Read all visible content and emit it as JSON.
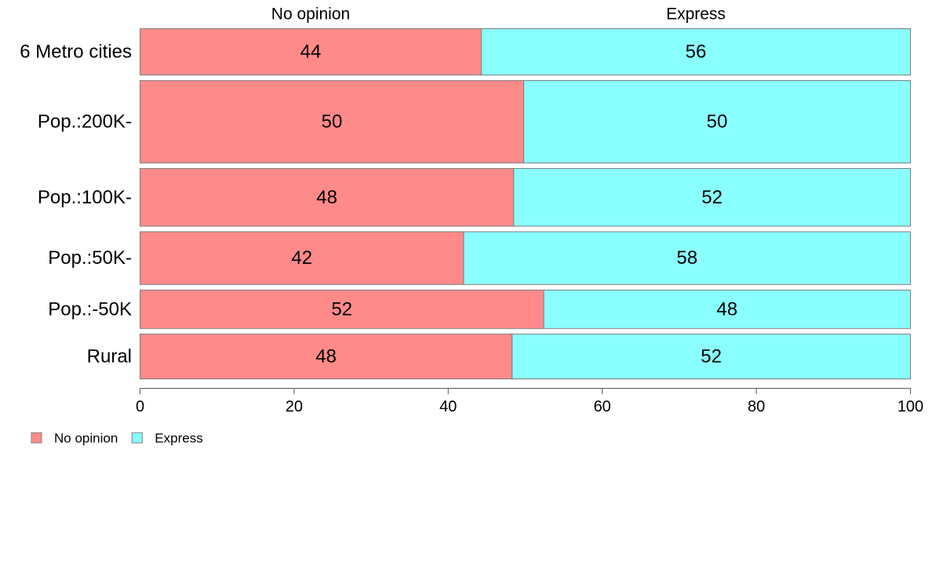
{
  "chart_data": {
    "type": "bar",
    "orientation": "horizontal",
    "stacked": true,
    "categories": [
      "6 Metro cities",
      "Pop.:200K-",
      "Pop.:100K-",
      "Pop.:50K-",
      "Pop.:-50K",
      "Rural"
    ],
    "relative_widths": [
      0.94,
      1.67,
      1.17,
      1.07,
      0.78,
      0.91
    ],
    "series": [
      {
        "name": "No opinion",
        "color": "#ff8a8a",
        "values": [
          44.3,
          49.8,
          48.5,
          42.0,
          52.4,
          48.3
        ]
      },
      {
        "name": "Express",
        "color": "#8affff",
        "values": [
          55.7,
          50.2,
          51.5,
          58.0,
          47.6,
          51.7
        ]
      }
    ],
    "value_labels": [
      [
        "44",
        "50",
        "48",
        "42",
        "52",
        "48"
      ],
      [
        "56",
        "50",
        "52",
        "58",
        "48",
        "52"
      ]
    ],
    "column_headers": [
      "No opinion",
      "Express"
    ],
    "xlim": [
      0,
      100
    ],
    "xticks": [
      0,
      20,
      40,
      60,
      80,
      100
    ],
    "xlabel": "",
    "ylabel": "",
    "title": "",
    "grid": false,
    "legend": {
      "placement": "bottom-left",
      "entries": [
        "No opinion",
        "Express"
      ]
    }
  }
}
